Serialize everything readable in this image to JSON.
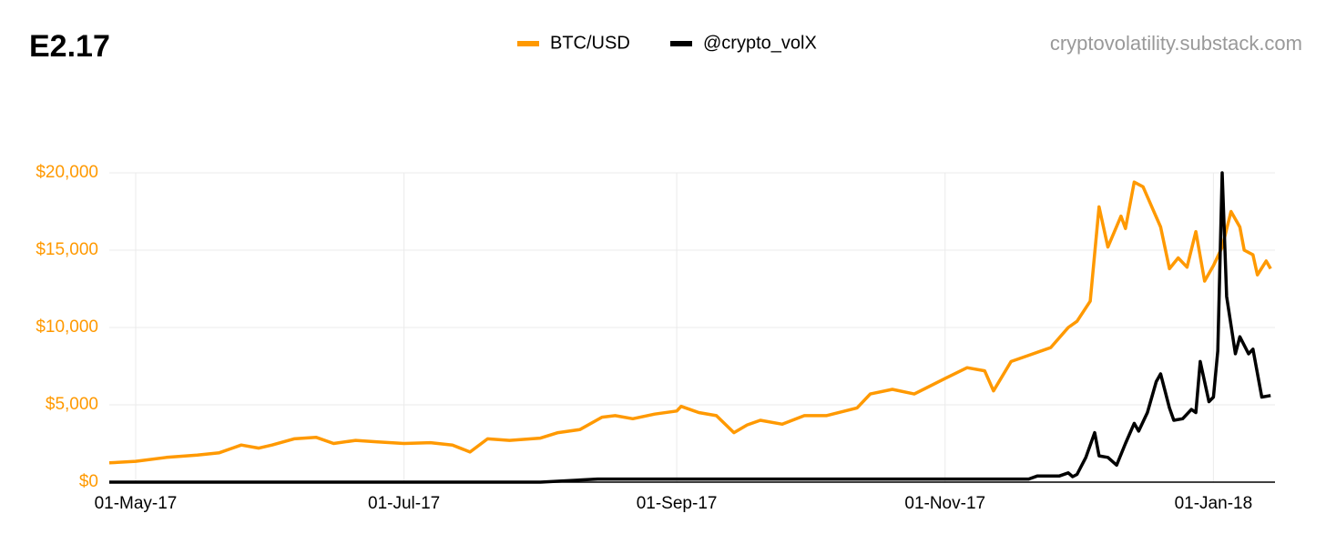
{
  "chart_data": {
    "type": "line",
    "title": "E2.17",
    "source": "cryptovolatility.substack.com",
    "xlim": [
      "2017-04-25",
      "2018-01-15"
    ],
    "xticks": [
      {
        "value": "2017-05-01",
        "label": "01-May-17"
      },
      {
        "value": "2017-07-01",
        "label": "01-Jul-17"
      },
      {
        "value": "2017-09-01",
        "label": "01-Sep-17"
      },
      {
        "value": "2017-11-01",
        "label": "01-Nov-17"
      },
      {
        "value": "2018-01-01",
        "label": "01-Jan-18"
      }
    ],
    "ylim": [
      0,
      20000
    ],
    "yticks": [
      {
        "value": 0,
        "label": "$0"
      },
      {
        "value": 5000,
        "label": "$5,000"
      },
      {
        "value": 10000,
        "label": "$10,000"
      },
      {
        "value": 15000,
        "label": "$15,000"
      },
      {
        "value": 20000,
        "label": "$20,000"
      }
    ],
    "grid": true,
    "series": [
      {
        "name": "BTC/USD",
        "color": "#ff9900",
        "x": [
          "2017-04-25",
          "2017-05-01",
          "2017-05-08",
          "2017-05-15",
          "2017-05-20",
          "2017-05-25",
          "2017-05-29",
          "2017-06-01",
          "2017-06-06",
          "2017-06-11",
          "2017-06-15",
          "2017-06-20",
          "2017-06-25",
          "2017-07-01",
          "2017-07-07",
          "2017-07-12",
          "2017-07-16",
          "2017-07-20",
          "2017-07-25",
          "2017-08-01",
          "2017-08-05",
          "2017-08-10",
          "2017-08-15",
          "2017-08-18",
          "2017-08-22",
          "2017-08-27",
          "2017-09-01",
          "2017-09-02",
          "2017-09-06",
          "2017-09-10",
          "2017-09-14",
          "2017-09-17",
          "2017-09-20",
          "2017-09-25",
          "2017-09-30",
          "2017-10-05",
          "2017-10-12",
          "2017-10-15",
          "2017-10-20",
          "2017-10-25",
          "2017-11-01",
          "2017-11-06",
          "2017-11-10",
          "2017-11-12",
          "2017-11-16",
          "2017-11-20",
          "2017-11-25",
          "2017-11-29",
          "2017-12-01",
          "2017-12-04",
          "2017-12-06",
          "2017-12-08",
          "2017-12-11",
          "2017-12-12",
          "2017-12-14",
          "2017-12-16",
          "2017-12-20",
          "2017-12-22",
          "2017-12-24",
          "2017-12-26",
          "2017-12-28",
          "2017-12-30",
          "2018-01-01",
          "2018-01-03",
          "2018-01-05",
          "2018-01-07",
          "2018-01-08",
          "2018-01-10",
          "2018-01-11",
          "2018-01-13",
          "2018-01-14"
        ],
        "values": [
          1250,
          1350,
          1600,
          1750,
          1900,
          2400,
          2200,
          2400,
          2800,
          2900,
          2500,
          2700,
          2600,
          2500,
          2550,
          2400,
          1950,
          2800,
          2700,
          2850,
          3200,
          3400,
          4200,
          4300,
          4100,
          4400,
          4600,
          4900,
          4500,
          4300,
          3200,
          3700,
          4000,
          3750,
          4300,
          4300,
          4800,
          5700,
          6000,
          5700,
          6700,
          7400,
          7200,
          5900,
          7800,
          8200,
          8700,
          10000,
          10400,
          11700,
          17800,
          15200,
          17200,
          16400,
          19400,
          19100,
          16500,
          13800,
          14500,
          13900,
          16200,
          13000,
          14000,
          15200,
          17500,
          16500,
          15000,
          14700,
          13400,
          14300,
          13800
        ]
      },
      {
        "name": "@crypto_volX",
        "color": "#000000",
        "x": [
          "2017-04-25",
          "2017-08-01",
          "2017-08-14",
          "2017-11-20",
          "2017-11-22",
          "2017-11-27",
          "2017-11-29",
          "2017-11-30",
          "2017-12-01",
          "2017-12-03",
          "2017-12-05",
          "2017-12-06",
          "2017-12-08",
          "2017-12-10",
          "2017-12-12",
          "2017-12-14",
          "2017-12-15",
          "2017-12-17",
          "2017-12-19",
          "2017-12-20",
          "2017-12-22",
          "2017-12-23",
          "2017-12-25",
          "2017-12-27",
          "2017-12-28",
          "2017-12-29",
          "2017-12-31",
          "2018-01-01",
          "2018-01-02",
          "2018-01-03",
          "2018-01-04",
          "2018-01-06",
          "2018-01-07",
          "2018-01-09",
          "2018-01-10",
          "2018-01-12",
          "2018-01-14"
        ],
        "values": [
          0,
          0,
          200,
          200,
          400,
          400,
          600,
          350,
          500,
          1600,
          3200,
          1700,
          1600,
          1100,
          2500,
          3800,
          3300,
          4500,
          6500,
          7000,
          4800,
          4000,
          4100,
          4700,
          4500,
          7800,
          5200,
          5500,
          8500,
          20000,
          12000,
          8300,
          9400,
          8300,
          8600,
          5500,
          5600
        ]
      }
    ]
  }
}
